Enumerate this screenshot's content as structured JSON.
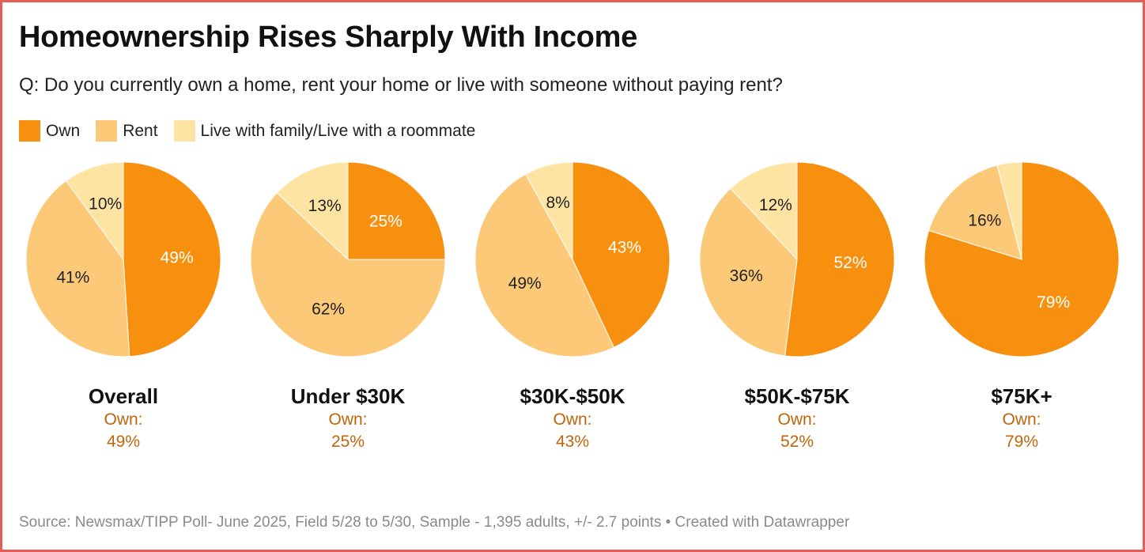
{
  "title": "Homeownership Rises Sharply With Income",
  "subtitle": "Q: Do you currently own a home, rent your home or live with someone without paying rent?",
  "legend": [
    {
      "label": "Own",
      "color": "#f78f0f"
    },
    {
      "label": "Rent",
      "color": "#fcc978"
    },
    {
      "label": "Live with family/Live with a roommate",
      "color": "#fee4a3"
    }
  ],
  "chart_data": {
    "type": "pie",
    "title": "Homeownership Rises Sharply With Income",
    "series_names": [
      "Own",
      "Rent",
      "Live with family/Live with a roommate"
    ],
    "charts": [
      {
        "name": "Overall",
        "values": [
          49,
          41,
          10
        ],
        "labels": [
          "49%",
          "41%",
          "10%"
        ],
        "own_caption": "Own:",
        "own_value": "49%"
      },
      {
        "name": "Under $30K",
        "values": [
          25,
          62,
          13
        ],
        "labels": [
          "25%",
          "62%",
          "13%"
        ],
        "own_caption": "Own:",
        "own_value": "25%"
      },
      {
        "name": "$30K-$50K",
        "values": [
          43,
          49,
          8
        ],
        "labels": [
          "43%",
          "49%",
          "8%"
        ],
        "own_caption": "Own:",
        "own_value": "43%"
      },
      {
        "name": "$50K-$75K",
        "values": [
          52,
          36,
          12
        ],
        "labels": [
          "52%",
          "36%",
          "12%"
        ],
        "own_caption": "Own:",
        "own_value": "52%"
      },
      {
        "name": "$75K+",
        "values": [
          79,
          16,
          4
        ],
        "labels": [
          "79%",
          "16%",
          ""
        ],
        "own_caption": "Own:",
        "own_value": "79%"
      }
    ]
  },
  "footer": "Source: Newsmax/TIPP Poll- June 2025, Field 5/28 to 5/30, Sample - 1,395 adults, +/- 2.7 points • Created with Datawrapper"
}
